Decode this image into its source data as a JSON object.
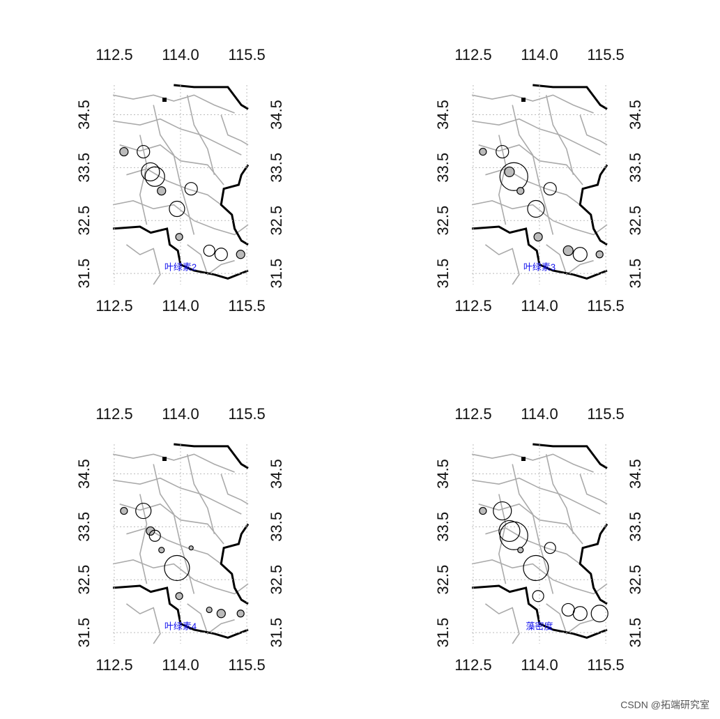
{
  "chart_data": [
    {
      "type": "scatter",
      "label": "叶绿素2",
      "x": [
        112.72,
        113.16,
        113.32,
        113.42,
        113.57,
        114.24,
        113.92,
        113.97,
        114.65,
        114.92,
        115.36
      ],
      "y": [
        33.8,
        33.8,
        33.42,
        33.33,
        33.06,
        33.1,
        32.72,
        32.19,
        31.93,
        31.86,
        31.86
      ],
      "sizes": [
        6,
        9,
        13,
        14,
        6,
        9,
        11,
        5,
        8,
        9,
        6
      ],
      "xlim": [
        112.47,
        115.53
      ],
      "ylim": [
        31.29,
        35.06
      ],
      "xticks": [
        112.5,
        {
          "value": 114,
          "label": "114.0"
        },
        115.5
      ],
      "yticks": [
        31.5,
        32.5,
        33.5,
        34.5
      ],
      "grid": true
    },
    {
      "type": "scatter",
      "label": "叶绿素3",
      "x": [
        112.72,
        113.16,
        113.32,
        113.42,
        113.57,
        114.24,
        113.92,
        113.97,
        114.65,
        114.92,
        115.36
      ],
      "y": [
        33.8,
        33.8,
        33.42,
        33.33,
        33.06,
        33.1,
        32.72,
        32.19,
        31.93,
        31.86,
        31.86
      ],
      "sizes": [
        5,
        9,
        7,
        20,
        5,
        9,
        12,
        6,
        7,
        10,
        5
      ],
      "xlim": [
        112.47,
        115.53
      ],
      "ylim": [
        31.29,
        35.06
      ],
      "xticks": [
        112.5,
        {
          "value": 114,
          "label": "114.0"
        },
        115.5
      ],
      "yticks": [
        31.5,
        32.5,
        33.5,
        34.5
      ],
      "grid": true
    },
    {
      "type": "scatter",
      "label": "叶绿素4",
      "x": [
        112.72,
        113.16,
        113.32,
        113.42,
        113.57,
        114.24,
        113.92,
        113.97,
        114.65,
        114.92,
        115.36
      ],
      "y": [
        33.8,
        33.8,
        33.42,
        33.33,
        33.06,
        33.1,
        32.72,
        32.19,
        31.93,
        31.86,
        31.86
      ],
      "sizes": [
        5,
        11,
        6,
        8,
        4,
        3,
        18,
        5,
        4,
        6,
        5
      ],
      "xlim": [
        112.47,
        115.53
      ],
      "ylim": [
        31.29,
        35.06
      ],
      "xticks": [
        112.5,
        {
          "value": 114,
          "label": "114.0"
        },
        115.5
      ],
      "yticks": [
        31.5,
        32.5,
        33.5,
        34.5
      ],
      "grid": true
    },
    {
      "type": "scatter",
      "label": "藻密度",
      "x": [
        112.72,
        113.16,
        113.32,
        113.42,
        113.57,
        114.24,
        113.92,
        113.97,
        114.65,
        114.92,
        115.36
      ],
      "y": [
        33.8,
        33.8,
        33.42,
        33.33,
        33.06,
        33.1,
        32.72,
        32.19,
        31.93,
        31.86,
        31.86
      ],
      "sizes": [
        5,
        13,
        15,
        20,
        4,
        8,
        18,
        8,
        9,
        10,
        12
      ],
      "xlim": [
        112.47,
        115.53
      ],
      "ylim": [
        31.29,
        35.06
      ],
      "xticks": [
        112.5,
        {
          "value": 114,
          "label": "114.0"
        },
        115.5
      ],
      "yticks": [
        31.5,
        32.5,
        33.5,
        34.5
      ],
      "grid": true
    }
  ],
  "watermark": "CSDN @拓端研究室"
}
